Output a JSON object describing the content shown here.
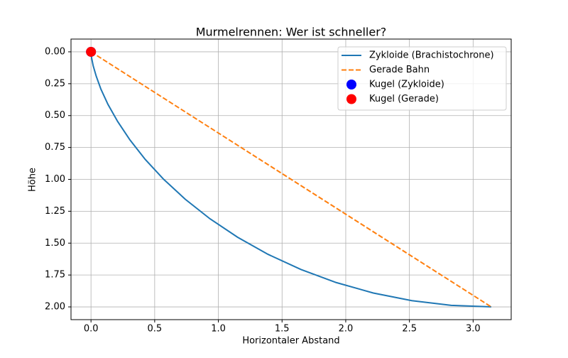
{
  "chart_data": {
    "type": "line",
    "title": "Murmelrennen: Wer ist schneller?",
    "xlabel": "Horizontaler Abstand",
    "ylabel": "Höhe",
    "xlim": [
      -0.157,
      3.299
    ],
    "ylim": [
      2.1,
      -0.1
    ],
    "xticks": [
      {
        "value": 0,
        "label": "0.0"
      },
      {
        "value": 0.5,
        "label": "0.5"
      },
      {
        "value": 1,
        "label": "1.0"
      },
      {
        "value": 1.5,
        "label": "1.5"
      },
      {
        "value": 2,
        "label": "2.0"
      },
      {
        "value": 2.5,
        "label": "2.5"
      },
      {
        "value": 3,
        "label": "3.0"
      }
    ],
    "yticks": [
      {
        "value": 0,
        "label": "0.00"
      },
      {
        "value": 0.25,
        "label": "0.25"
      },
      {
        "value": 0.5,
        "label": "0.50"
      },
      {
        "value": 0.75,
        "label": "0.75"
      },
      {
        "value": 1,
        "label": "1.00"
      },
      {
        "value": 1.25,
        "label": "1.25"
      },
      {
        "value": 1.5,
        "label": "1.50"
      },
      {
        "value": 1.75,
        "label": "1.75"
      },
      {
        "value": 2,
        "label": "2.00"
      }
    ],
    "grid": true,
    "legend": "upper right",
    "series": [
      {
        "name": "Zykloide (Brachistochrone)",
        "color": "#1f77b4",
        "style": "solid",
        "x": [
          0,
          0.001,
          0.005,
          0.017,
          0.041,
          0.078,
          0.133,
          0.209,
          0.306,
          0.426,
          0.571,
          0.74,
          0.934,
          1.151,
          1.39,
          1.649,
          1.925,
          2.216,
          2.518,
          2.828,
          3.142
        ],
        "values": [
          0,
          0.012,
          0.049,
          0.109,
          0.191,
          0.293,
          0.412,
          0.546,
          0.691,
          0.844,
          1,
          1.156,
          1.309,
          1.454,
          1.588,
          1.707,
          1.809,
          1.891,
          1.951,
          1.988,
          2
        ]
      },
      {
        "name": "Gerade Bahn",
        "color": "#ff7f0e",
        "style": "dashed",
        "x": [
          0,
          3.142
        ],
        "values": [
          0,
          2
        ]
      },
      {
        "name": "Kugel (Zykloide)",
        "color": "#0000ff",
        "style": "marker",
        "x": [
          0
        ],
        "values": [
          0
        ]
      },
      {
        "name": "Kugel (Gerade)",
        "color": "#ff0000",
        "style": "marker",
        "x": [
          0
        ],
        "values": [
          0
        ]
      }
    ]
  }
}
